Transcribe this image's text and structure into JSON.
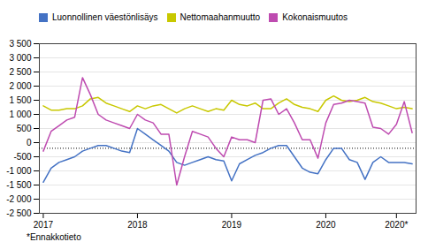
{
  "chart_data": {
    "type": "line",
    "categories": [
      "2017",
      null,
      null,
      null,
      null,
      null,
      null,
      null,
      null,
      null,
      null,
      null,
      "2018",
      null,
      null,
      null,
      null,
      null,
      null,
      null,
      null,
      null,
      null,
      null,
      "2019",
      null,
      null,
      null,
      null,
      null,
      null,
      null,
      null,
      null,
      null,
      null,
      "2020",
      null,
      null,
      null,
      null,
      null,
      null,
      null,
      null,
      "2020*",
      null,
      null
    ],
    "series": [
      {
        "name": "Luonnollinen väestönlisäys",
        "color": "#4472C4",
        "values": [
          -1400,
          -900,
          -700,
          -600,
          -500,
          -300,
          -200,
          -100,
          -100,
          -200,
          -300,
          -350,
          500,
          300,
          100,
          -100,
          -300,
          -700,
          -800,
          -700,
          -600,
          -500,
          -600,
          -650,
          -1350,
          -750,
          -600,
          -450,
          -350,
          -200,
          -100,
          -100,
          -500,
          -900,
          -1050,
          -1100,
          -600,
          -200,
          -200,
          -600,
          -700,
          -1300,
          -700,
          -500,
          -700,
          -700,
          -700,
          -750
        ]
      },
      {
        "name": "Nettomaahanmuutto",
        "color": "#C8C800",
        "values": [
          1300,
          1150,
          1150,
          1200,
          1200,
          1300,
          1550,
          1600,
          1400,
          1300,
          1200,
          1100,
          1300,
          1200,
          1300,
          1350,
          1200,
          1050,
          1200,
          1300,
          1200,
          1100,
          1200,
          1150,
          1500,
          1350,
          1300,
          1400,
          1200,
          1200,
          1400,
          1550,
          1350,
          1250,
          1200,
          1100,
          1500,
          1650,
          1500,
          1450,
          1500,
          1600,
          1450,
          1400,
          1300,
          1200,
          1250,
          1200
        ]
      },
      {
        "name": "Kokonaismuutos",
        "color": "#BE4BB0",
        "values": [
          -300,
          400,
          600,
          800,
          900,
          2300,
          1700,
          1000,
          800,
          700,
          600,
          500,
          1000,
          800,
          700,
          300,
          300,
          -1500,
          -500,
          400,
          300,
          200,
          -200,
          -500,
          200,
          100,
          100,
          0,
          1500,
          1550,
          1000,
          1200,
          700,
          100,
          100,
          -550,
          700,
          1350,
          1400,
          1500,
          1450,
          1400,
          550,
          500,
          300,
          650,
          1450,
          350
        ]
      }
    ],
    "ylim": [
      -2500,
      3500
    ],
    "yticks": [
      {
        "value": -2500,
        "label": "-2 500"
      },
      {
        "value": -2000,
        "label": "-2 000"
      },
      {
        "value": -1500,
        "label": "-1 500"
      },
      {
        "value": -1000,
        "label": "-1 000"
      },
      -500,
      0,
      500,
      {
        "value": 1000,
        "label": "1 000"
      },
      {
        "value": 1500,
        "label": "1 500"
      },
      {
        "value": 2000,
        "label": "2 000"
      },
      {
        "value": 2500,
        "label": "2 500"
      },
      {
        "value": 3000,
        "label": "3 000"
      },
      {
        "value": 3500,
        "label": "3 500"
      }
    ],
    "hline_y": -200,
    "footnote": "*Ennakkotieto",
    "grid": true,
    "legend": "upper left"
  }
}
